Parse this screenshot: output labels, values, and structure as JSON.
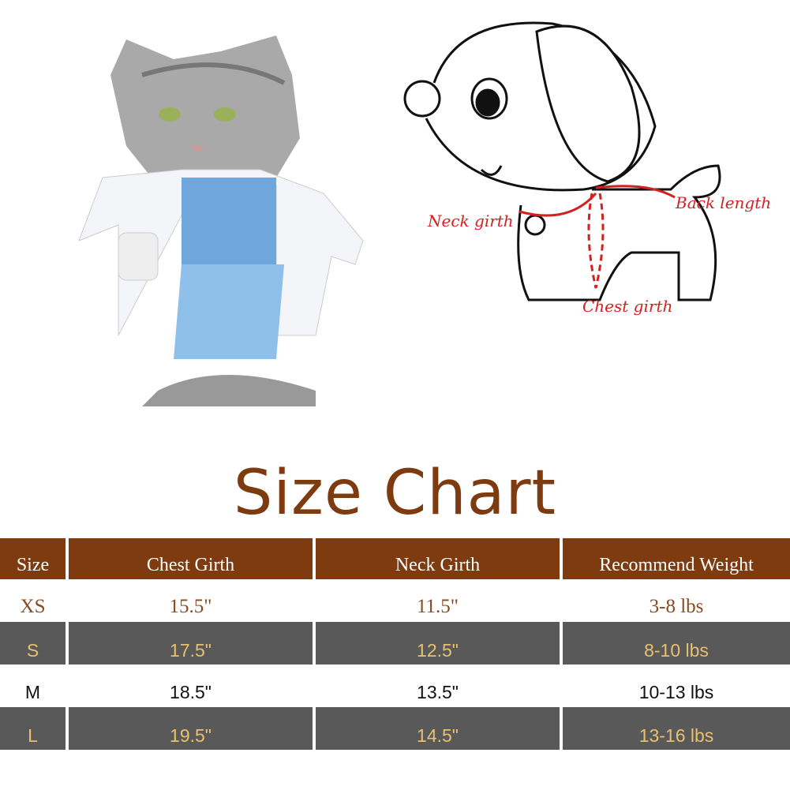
{
  "diagram": {
    "labels": {
      "neck": "Neck  girth",
      "back": "Back length",
      "chest": "Chest girth"
    }
  },
  "title": "Size Chart",
  "colors": {
    "header": "#7f3b10",
    "stripe": "#595959",
    "stripe_text": "#e8c070",
    "measure_lines": "#d32020"
  },
  "table": {
    "headers": [
      "Size",
      "Chest Girth",
      "Neck Girth",
      "Recommend Weight"
    ],
    "rows": [
      [
        "XS",
        "15.5\"",
        "11.5\"",
        "3-8 lbs"
      ],
      [
        "S",
        "17.5\"",
        "12.5\"",
        "8-10 lbs"
      ],
      [
        "M",
        "18.5\"",
        "13.5\"",
        "10-13 lbs"
      ],
      [
        "L",
        "19.5\"",
        "14.5\"",
        "13-16 lbs"
      ]
    ]
  }
}
